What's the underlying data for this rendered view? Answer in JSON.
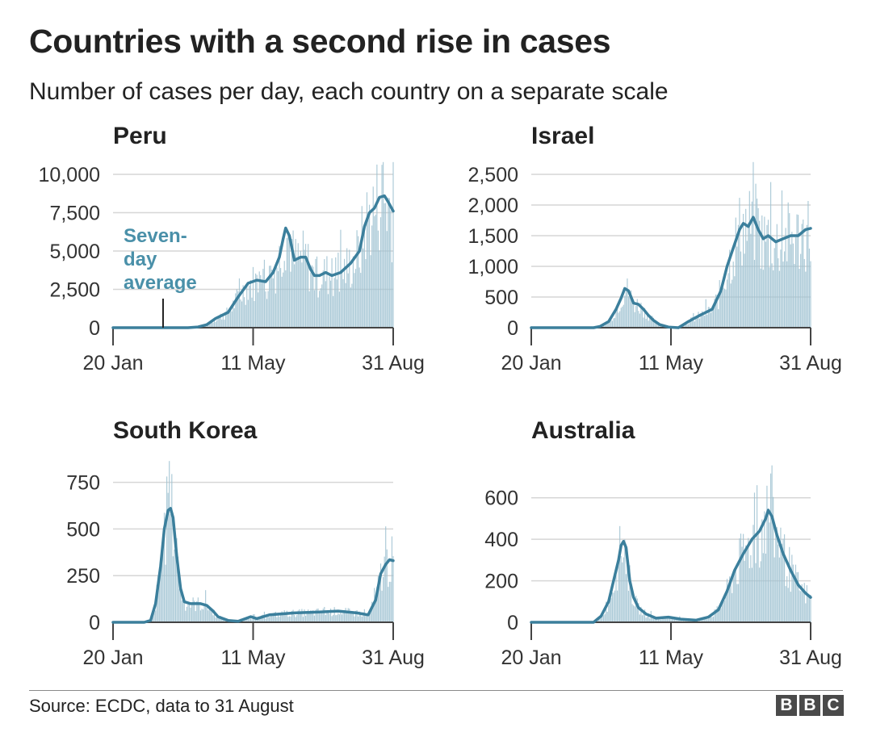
{
  "title": "Countries with a second rise in cases",
  "subtitle": "Number of cases per day, each country on a separate scale",
  "source": "Source: ECDC, data to 31 August",
  "logo": {
    "letters": [
      "B",
      "B",
      "C"
    ]
  },
  "colors": {
    "line": "#3b7f9c",
    "bars": "#9fc2d1",
    "grid": "#d6d6d6",
    "axis": "#444444",
    "annotation": "#4a90a9"
  },
  "chart_data": [
    {
      "type": "line",
      "title": "Peru",
      "x_tick_labels": [
        "20 Jan",
        "11 May",
        "31 Aug"
      ],
      "x_range_days": [
        0,
        224
      ],
      "ylim": [
        0,
        10000
      ],
      "y_ticks": [
        0,
        2500,
        5000,
        7500,
        10000
      ],
      "y_tick_labels": [
        "0",
        "2,500",
        "5,000",
        "7,500",
        "10,000"
      ],
      "annotation": {
        "lines": [
          "Seven-",
          "day",
          "average"
        ],
        "day": 40
      },
      "series": [
        {
          "name": "Seven-day average",
          "points": [
            [
              0,
              0
            ],
            [
              48,
              0
            ],
            [
              60,
              0
            ],
            [
              68,
              50
            ],
            [
              75,
              200
            ],
            [
              82,
              600
            ],
            [
              92,
              1000
            ],
            [
              100,
              2000
            ],
            [
              108,
              2900
            ],
            [
              115,
              3100
            ],
            [
              122,
              3000
            ],
            [
              128,
              3600
            ],
            [
              133,
              4600
            ],
            [
              136,
              5800
            ],
            [
              138,
              6500
            ],
            [
              141,
              6000
            ],
            [
              145,
              4400
            ],
            [
              150,
              4600
            ],
            [
              154,
              4600
            ],
            [
              158,
              3800
            ],
            [
              161,
              3400
            ],
            [
              165,
              3400
            ],
            [
              170,
              3600
            ],
            [
              175,
              3400
            ],
            [
              182,
              3600
            ],
            [
              190,
              4200
            ],
            [
              197,
              5000
            ],
            [
              201,
              6600
            ],
            [
              205,
              7500
            ],
            [
              209,
              7800
            ],
            [
              213,
              8500
            ],
            [
              217,
              8600
            ],
            [
              220,
              8200
            ],
            [
              224,
              7600
            ]
          ]
        }
      ]
    },
    {
      "type": "line",
      "title": "Israel",
      "x_tick_labels": [
        "20 Jan",
        "11 May",
        "31 Aug"
      ],
      "x_range_days": [
        0,
        224
      ],
      "ylim": [
        0,
        2500
      ],
      "y_ticks": [
        0,
        500,
        1000,
        1500,
        2000,
        2500
      ],
      "y_tick_labels": [
        "0",
        "500",
        "1,000",
        "1,500",
        "2,000",
        "2,500"
      ],
      "series": [
        {
          "name": "Seven-day average",
          "points": [
            [
              0,
              0
            ],
            [
              50,
              0
            ],
            [
              55,
              20
            ],
            [
              62,
              100
            ],
            [
              68,
              300
            ],
            [
              72,
              480
            ],
            [
              75,
              640
            ],
            [
              78,
              600
            ],
            [
              82,
              400
            ],
            [
              86,
              380
            ],
            [
              90,
              300
            ],
            [
              94,
              200
            ],
            [
              98,
              120
            ],
            [
              103,
              50
            ],
            [
              110,
              10
            ],
            [
              118,
              0
            ],
            [
              126,
              100
            ],
            [
              135,
              200
            ],
            [
              145,
              300
            ],
            [
              152,
              600
            ],
            [
              157,
              1000
            ],
            [
              162,
              1300
            ],
            [
              167,
              1600
            ],
            [
              170,
              1700
            ],
            [
              174,
              1650
            ],
            [
              178,
              1800
            ],
            [
              182,
              1600
            ],
            [
              186,
              1450
            ],
            [
              190,
              1500
            ],
            [
              196,
              1400
            ],
            [
              202,
              1450
            ],
            [
              208,
              1500
            ],
            [
              214,
              1500
            ],
            [
              220,
              1600
            ],
            [
              224,
              1620
            ]
          ]
        }
      ]
    },
    {
      "type": "line",
      "title": "South Korea",
      "x_tick_labels": [
        "20 Jan",
        "11 May",
        "31 Aug"
      ],
      "x_range_days": [
        0,
        224
      ],
      "ylim": [
        0,
        800
      ],
      "y_ticks": [
        0,
        250,
        500,
        750
      ],
      "y_tick_labels": [
        "0",
        "250",
        "500",
        "750"
      ],
      "series": [
        {
          "name": "Seven-day average",
          "points": [
            [
              0,
              0
            ],
            [
              25,
              0
            ],
            [
              30,
              10
            ],
            [
              34,
              100
            ],
            [
              38,
              300
            ],
            [
              41,
              500
            ],
            [
              44,
              600
            ],
            [
              46,
              610
            ],
            [
              48,
              560
            ],
            [
              51,
              350
            ],
            [
              54,
              180
            ],
            [
              57,
              110
            ],
            [
              62,
              100
            ],
            [
              70,
              100
            ],
            [
              75,
              90
            ],
            [
              80,
              60
            ],
            [
              84,
              30
            ],
            [
              92,
              10
            ],
            [
              100,
              5
            ],
            [
              110,
              30
            ],
            [
              115,
              20
            ],
            [
              125,
              40
            ],
            [
              145,
              50
            ],
            [
              165,
              55
            ],
            [
              180,
              60
            ],
            [
              195,
              50
            ],
            [
              204,
              40
            ],
            [
              210,
              120
            ],
            [
              214,
              260
            ],
            [
              218,
              310
            ],
            [
              221,
              335
            ],
            [
              224,
              330
            ]
          ]
        }
      ]
    },
    {
      "type": "line",
      "title": "Australia",
      "x_tick_labels": [
        "20 Jan",
        "11 May",
        "31 Aug"
      ],
      "x_range_days": [
        0,
        224
      ],
      "ylim": [
        0,
        700
      ],
      "y_ticks": [
        0,
        200,
        400,
        600
      ],
      "y_tick_labels": [
        "0",
        "200",
        "400",
        "600"
      ],
      "series": [
        {
          "name": "Seven-day average",
          "points": [
            [
              0,
              0
            ],
            [
              50,
              0
            ],
            [
              56,
              30
            ],
            [
              62,
              100
            ],
            [
              66,
              200
            ],
            [
              70,
              300
            ],
            [
              72,
              370
            ],
            [
              74,
              390
            ],
            [
              76,
              360
            ],
            [
              79,
              200
            ],
            [
              82,
              120
            ],
            [
              86,
              70
            ],
            [
              92,
              40
            ],
            [
              100,
              20
            ],
            [
              110,
              25
            ],
            [
              120,
              15
            ],
            [
              132,
              10
            ],
            [
              142,
              25
            ],
            [
              150,
              60
            ],
            [
              157,
              150
            ],
            [
              163,
              250
            ],
            [
              170,
              330
            ],
            [
              177,
              400
            ],
            [
              183,
              440
            ],
            [
              188,
              500
            ],
            [
              190,
              540
            ],
            [
              193,
              510
            ],
            [
              197,
              420
            ],
            [
              202,
              330
            ],
            [
              208,
              250
            ],
            [
              214,
              180
            ],
            [
              220,
              140
            ],
            [
              224,
              120
            ]
          ]
        }
      ]
    }
  ]
}
